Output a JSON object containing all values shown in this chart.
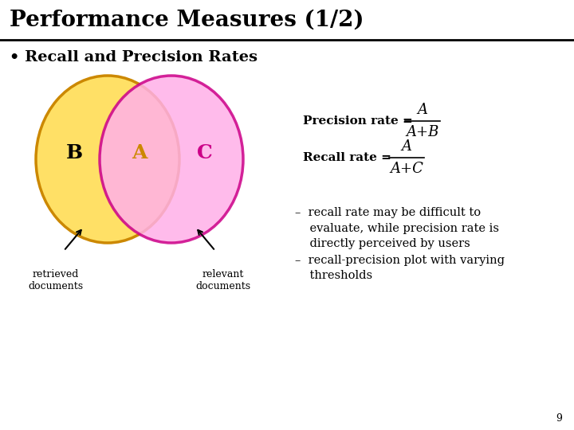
{
  "title": "Performance Measures (1/2)",
  "bullet": "Recall and Precision Rates",
  "circle_left_color": "#FFE066",
  "circle_left_edge": "#CC8800",
  "circle_right_color": "#FFB0E8",
  "circle_right_edge": "#CC0088",
  "label_B": "B",
  "label_A": "A",
  "label_C": "C",
  "label_B_color": "#000000",
  "label_A_color": "#CC8800",
  "label_C_color": "#CC0088",
  "retrieved_label": "retrieved\ndocuments",
  "relevant_label": "relevant\ndocuments",
  "precision_rate_text": "Precision rate = ",
  "precision_numerator": "A",
  "precision_denominator": "A+B",
  "recall_rate_text": "Recall rate = ",
  "recall_numerator": "A",
  "recall_denominator": "A+C",
  "bullet1": "–  recall rate may be difficult to\n    evaluate, while precision rate is\n    directly perceived by users",
  "bullet2": "–  recall-precision plot with varying\n    thresholds",
  "page_number": "9",
  "bg_color": "#FFFFFF",
  "title_font_size": 20,
  "body_font_size": 12
}
